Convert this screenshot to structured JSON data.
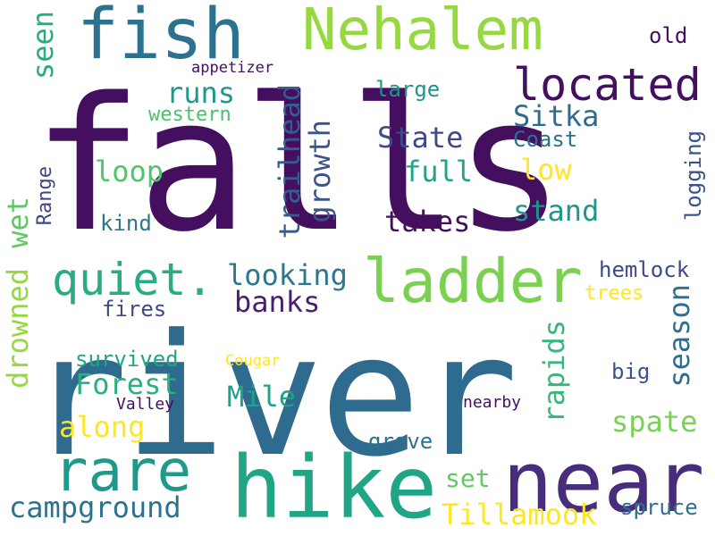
{
  "words": {
    "falls": {
      "text": "falls",
      "color": "#440f5e"
    },
    "river": {
      "text": "river",
      "color": "#2e6b8e"
    },
    "hike": {
      "text": "hike",
      "color": "#21a685"
    },
    "near": {
      "text": "near",
      "color": "#472d7b"
    },
    "nehalem": {
      "text": "Nehalem",
      "color": "#95d840"
    },
    "fish": {
      "text": "fish",
      "color": "#2c728e"
    },
    "ladder": {
      "text": "ladder",
      "color": "#7ad151"
    },
    "rare": {
      "text": "rare",
      "color": "#1f9a8a"
    },
    "located": {
      "text": "located",
      "color": "#440f5e"
    },
    "quiet": {
      "text": "quiet.",
      "color": "#27ad81"
    },
    "campground": {
      "text": "campground",
      "color": "#2c728e"
    },
    "tillamook": {
      "text": "Tillamook",
      "color": "#fde725"
    },
    "trailhead": {
      "text": "trailhead",
      "color": "#365c8d"
    },
    "growth": {
      "text": "growth",
      "color": "#3b528b"
    },
    "sitka": {
      "text": "Sitka",
      "color": "#2e6b8e"
    },
    "state": {
      "text": "State",
      "color": "#3e4989"
    },
    "forest": {
      "text": "Forest",
      "color": "#2ab07f"
    },
    "mile": {
      "text": "Mile",
      "color": "#1fa088"
    },
    "looking": {
      "text": "looking",
      "color": "#2a788e"
    },
    "banks": {
      "text": "banks",
      "color": "#481f70"
    },
    "takes": {
      "text": "takes",
      "color": "#440f5e"
    },
    "full": {
      "text": "full",
      "color": "#20a386"
    },
    "stand": {
      "text": "stand",
      "color": "#1f968b"
    },
    "loop": {
      "text": "loop",
      "color": "#52c569"
    },
    "runs": {
      "text": "runs",
      "color": "#1f988b"
    },
    "seen": {
      "text": "seen",
      "color": "#27ad81"
    },
    "drowned": {
      "text": "drowned",
      "color": "#95d840"
    },
    "wet": {
      "text": "wet",
      "color": "#5ec962"
    },
    "range": {
      "text": "Range",
      "color": "#414487"
    },
    "along": {
      "text": "along",
      "color": "#fde725"
    },
    "spate": {
      "text": "spate",
      "color": "#7ad151"
    },
    "season": {
      "text": "season",
      "color": "#2d708e"
    },
    "rapids": {
      "text": "rapids",
      "color": "#37b878"
    },
    "logging": {
      "text": "logging",
      "color": "#3b528b"
    },
    "hemlock": {
      "text": "hemlock",
      "color": "#3e4989"
    },
    "low": {
      "text": "low",
      "color": "#fde725"
    },
    "old": {
      "text": "old",
      "color": "#440f5e"
    },
    "large": {
      "text": "large",
      "color": "#1f968b"
    },
    "coast": {
      "text": "Coast",
      "color": "#2d708e"
    },
    "western": {
      "text": "western",
      "color": "#4ac16d"
    },
    "kind": {
      "text": "kind",
      "color": "#2a788e"
    },
    "survived": {
      "text": "survived",
      "color": "#21a685"
    },
    "fires": {
      "text": "fires",
      "color": "#3e4989"
    },
    "trees": {
      "text": "trees",
      "color": "#fde725"
    },
    "big": {
      "text": "big",
      "color": "#3b528b"
    },
    "grove": {
      "text": "grove",
      "color": "#2c728e"
    },
    "set": {
      "text": "set",
      "color": "#5ec962"
    },
    "spruce": {
      "text": "spruce",
      "color": "#2c728e"
    },
    "nearby": {
      "text": "nearby",
      "color": "#440f5e"
    },
    "valley": {
      "text": "Valley",
      "color": "#440f5e"
    },
    "cougar": {
      "text": "Cougar",
      "color": "#fde725"
    },
    "appetizer": {
      "text": "appetizer",
      "color": "#440f5e"
    }
  }
}
